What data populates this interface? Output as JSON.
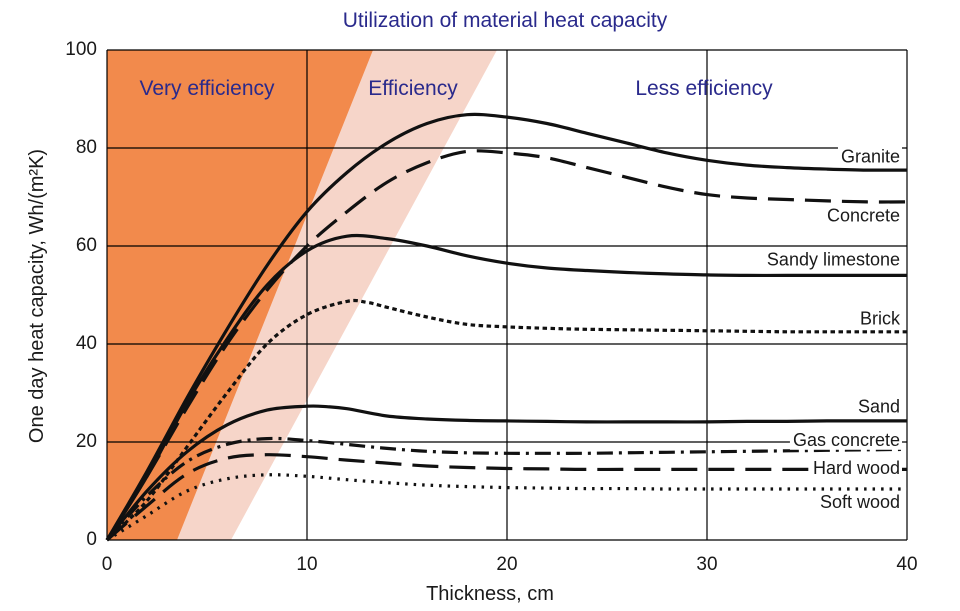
{
  "chart_data": {
    "type": "line",
    "title": "Utilization of material heat capacity",
    "xlabel": "Thickness, cm",
    "ylabel": "One day heat capacity, Wh/(m²K)",
    "xlim": [
      0,
      40
    ],
    "ylim": [
      0,
      100
    ],
    "x_ticks": [
      0,
      10,
      20,
      30,
      40
    ],
    "y_ticks": [
      0,
      20,
      40,
      60,
      80,
      100
    ],
    "grid": true,
    "zones": [
      {
        "label": "Very efficiency",
        "color": "#f28a4c",
        "boundary_x_at_bottom": 3.5,
        "boundary_x_at_top": 13.3
      },
      {
        "label": "Efficiency",
        "color": "#f6d5c9",
        "boundary_x_at_bottom": 6.2,
        "boundary_x_at_top": 19.5
      },
      {
        "label": "Less efficiency",
        "color": "#ffffff"
      }
    ],
    "series": [
      {
        "name": "Granite",
        "style": "solid",
        "x": [
          0,
          2,
          4,
          6,
          8,
          10,
          12,
          14,
          16,
          18,
          20,
          22,
          24,
          26,
          28,
          30,
          32,
          34,
          36,
          38,
          40
        ],
        "y": [
          0,
          14,
          29,
          43,
          56,
          67,
          75,
          81,
          85,
          86.8,
          86.3,
          85,
          83,
          81,
          79,
          77.5,
          76.5,
          76,
          75.7,
          75.5,
          75.5
        ]
      },
      {
        "name": "Concrete",
        "style": "dashed",
        "x": [
          0,
          2,
          4,
          6,
          8,
          10,
          12,
          14,
          16,
          18,
          20,
          22,
          24,
          26,
          28,
          30,
          32,
          34,
          36,
          38,
          40
        ],
        "y": [
          0,
          13,
          27,
          40,
          51,
          60,
          67,
          73,
          77,
          79.3,
          79,
          78,
          76,
          74,
          72,
          70.5,
          69.8,
          69.5,
          69.2,
          69,
          69
        ]
      },
      {
        "name": "Sandy limestone",
        "style": "solid",
        "x": [
          0,
          2,
          4,
          6,
          8,
          10,
          12,
          14,
          16,
          18,
          20,
          22,
          24,
          26,
          28,
          30,
          32,
          34,
          36,
          38,
          40
        ],
        "y": [
          0,
          13,
          28,
          41,
          52,
          59,
          62,
          61.5,
          60,
          58,
          56.5,
          55.5,
          55,
          54.6,
          54.3,
          54.1,
          54,
          54,
          54,
          54,
          54
        ]
      },
      {
        "name": "Brick",
        "style": "dotted",
        "x": [
          0,
          2,
          4,
          6,
          8,
          10,
          12,
          13,
          14,
          16,
          18,
          20,
          22,
          24,
          26,
          28,
          30,
          32,
          34,
          36,
          38,
          40
        ],
        "y": [
          0,
          8,
          19,
          30,
          40,
          46,
          48.7,
          48.5,
          47.5,
          45.5,
          44,
          43.5,
          43.2,
          43,
          42.9,
          42.8,
          42.7,
          42.6,
          42.5,
          42.5,
          42.5,
          42.5
        ]
      },
      {
        "name": "Sand",
        "style": "solid",
        "x": [
          0,
          2,
          4,
          6,
          8,
          10,
          11,
          12,
          14,
          16,
          18,
          20,
          22,
          24,
          26,
          28,
          30,
          32,
          34,
          36,
          38,
          40
        ],
        "y": [
          0,
          10,
          18,
          23.5,
          26.5,
          27.3,
          27.2,
          26.8,
          25.3,
          24.7,
          24.4,
          24.3,
          24.2,
          24.1,
          24.1,
          24.1,
          24.1,
          24.2,
          24.2,
          24.3,
          24.3,
          24.3
        ]
      },
      {
        "name": "Gas concrete",
        "style": "dash-dot",
        "x": [
          0,
          2,
          4,
          6,
          8,
          10,
          12,
          14,
          16,
          18,
          20,
          22,
          24,
          26,
          28,
          30,
          32,
          34,
          36,
          38,
          40
        ],
        "y": [
          0,
          9,
          16,
          19.5,
          20.7,
          20.3,
          19.5,
          18.7,
          18.1,
          17.8,
          17.7,
          17.7,
          17.7,
          17.8,
          17.9,
          18,
          18.1,
          18.2,
          18.3,
          18.4,
          18.5
        ]
      },
      {
        "name": "Hard wood",
        "style": "dashed",
        "x": [
          0,
          2,
          4,
          6,
          8,
          10,
          12,
          14,
          16,
          18,
          20,
          22,
          24,
          26,
          28,
          30,
          32,
          34,
          36,
          38,
          40
        ],
        "y": [
          0,
          7,
          13.5,
          16.7,
          17.4,
          17,
          16.3,
          15.7,
          15.1,
          14.8,
          14.6,
          14.5,
          14.4,
          14.4,
          14.4,
          14.4,
          14.4,
          14.4,
          14.4,
          14.4,
          14.4
        ]
      },
      {
        "name": "Soft wood",
        "style": "dotted-fine",
        "x": [
          0,
          2,
          4,
          6,
          8,
          10,
          12,
          14,
          16,
          18,
          20,
          22,
          24,
          26,
          28,
          30,
          32,
          34,
          36,
          38,
          40
        ],
        "y": [
          0,
          5,
          10,
          12.5,
          13.3,
          13,
          12.3,
          11.7,
          11.2,
          10.9,
          10.7,
          10.6,
          10.5,
          10.5,
          10.4,
          10.4,
          10.4,
          10.4,
          10.4,
          10.4,
          10.4
        ]
      }
    ],
    "series_label_y": {
      "Granite": 78,
      "Concrete": 66,
      "Sandy limestone": 57,
      "Brick": 45,
      "Sand": 27,
      "Gas concrete": 20.2,
      "Hard wood": 14.4,
      "Soft wood": 7.5
    }
  }
}
